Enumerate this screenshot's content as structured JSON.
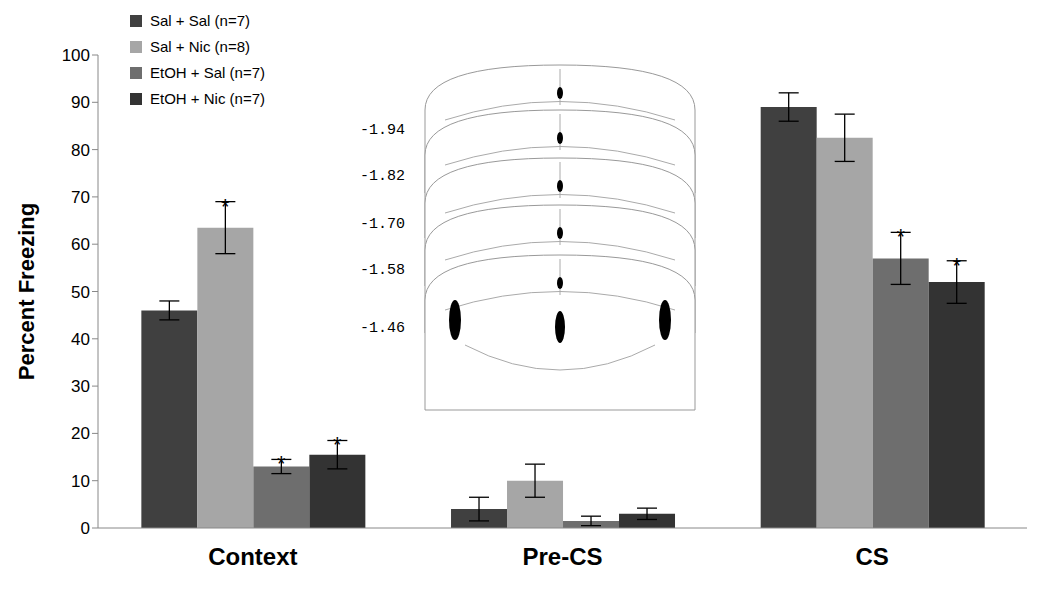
{
  "chart_data": {
    "type": "bar",
    "categories": [
      "Context",
      "Pre-CS",
      "CS"
    ],
    "y_label": "Percent Freezing",
    "ylim": [
      0,
      100
    ],
    "yticks": [
      0,
      10,
      20,
      30,
      40,
      50,
      60,
      70,
      80,
      90,
      100
    ],
    "grid": false,
    "legend": "upper left",
    "series": [
      {
        "name": "Sal + Sal (n=7)",
        "color": "#404040",
        "values": [
          46,
          4,
          89
        ],
        "errors": [
          2,
          2.5,
          3
        ],
        "significance": [
          null,
          null,
          null
        ]
      },
      {
        "name": "Sal + Nic (n=8)",
        "color": "#a6a6a6",
        "values": [
          63.5,
          10,
          82.5
        ],
        "errors": [
          5.5,
          3.5,
          5
        ],
        "significance": [
          "*",
          null,
          null
        ]
      },
      {
        "name": "EtOH + Sal (n=7)",
        "color": "#6e6e6e",
        "values": [
          13,
          1.5,
          57
        ],
        "errors": [
          1.5,
          1,
          5.5
        ],
        "significance": [
          "*",
          null,
          "*"
        ]
      },
      {
        "name": "EtOH + Nic (n=7)",
        "color": "#333333",
        "values": [
          15.5,
          3,
          52
        ],
        "errors": [
          3,
          1.2,
          4.5
        ],
        "significance": [
          "*",
          null,
          "*"
        ]
      }
    ],
    "annotations": [
      "-1.94",
      "-1.82",
      "-1.70",
      "-1.58",
      "-1.46"
    ]
  }
}
